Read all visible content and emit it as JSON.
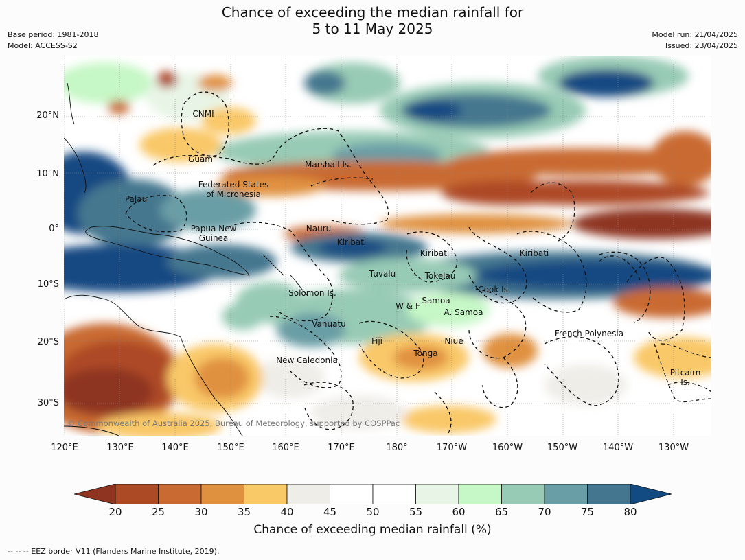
{
  "header": {
    "title_line1": "Chance of exceeding the median rainfall for",
    "title_line2": "5 to 11 May 2025",
    "base_period": "Base period: 1981-2018",
    "model": "Model: ACCESS-S2",
    "model_run": "Model run: 21/04/2025",
    "issued": "Issued: 23/04/2025"
  },
  "map": {
    "lat_labels": [
      "20°N",
      "10°N",
      "0°",
      "10°S",
      "20°S",
      "30°S"
    ],
    "lon_labels": [
      "120°E",
      "130°E",
      "140°E",
      "150°E",
      "160°E",
      "170°E",
      "180°",
      "170°W",
      "160°W",
      "150°W",
      "140°W",
      "130°W"
    ],
    "places": {
      "cnmi": "CNMI",
      "guam": "Guam",
      "marshall": "Marshall Is.",
      "fsm_1": "Federated States",
      "fsm_2": "of Micronesia",
      "palau": "Palau",
      "png_1": "Papua New",
      "png_2": "Guinea",
      "nauru": "Nauru",
      "kiribati_w": "Kiribati",
      "kiribati_c": "Kiribati",
      "kiribati_e": "Kiribati",
      "tuvalu": "Tuvalu",
      "tokelau": "Tokelau",
      "solomon": "Solomon Is.",
      "samoa": "Samoa",
      "wf": "W & F",
      "asamoa": "A. Samoa",
      "cook": "Cook Is.",
      "vanuatu": "Vanuatu",
      "fiji": "Fiji",
      "niue": "Niue",
      "tonga": "Tonga",
      "french_poly": "French Polynesia",
      "new_caledonia": "New Caledonia",
      "pitcairn_1": "Pitcairn",
      "pitcairn_2": "Is."
    },
    "copyright": "© Commonwealth of Australia 2025, Bureau of Meteorology, supported by COSPPac"
  },
  "colorbar": {
    "ticks": [
      "20",
      "25",
      "30",
      "35",
      "40",
      "45",
      "50",
      "55",
      "60",
      "65",
      "70",
      "75",
      "80"
    ],
    "colors": [
      "#8e3420",
      "#ad4a26",
      "#c96a33",
      "#e0913f",
      "#f9c867",
      "#efede8",
      "#ffffff",
      "#ffffff",
      "#e8f5e6",
      "#c6f7c6",
      "#98cbb5",
      "#6a9ea6",
      "#44778f",
      "#124a82"
    ],
    "label": "Chance of exceeding median rainfall (%)"
  },
  "footnote": "--  --  -- EEZ border V11 (Flanders Marine Institute, 2019)."
}
